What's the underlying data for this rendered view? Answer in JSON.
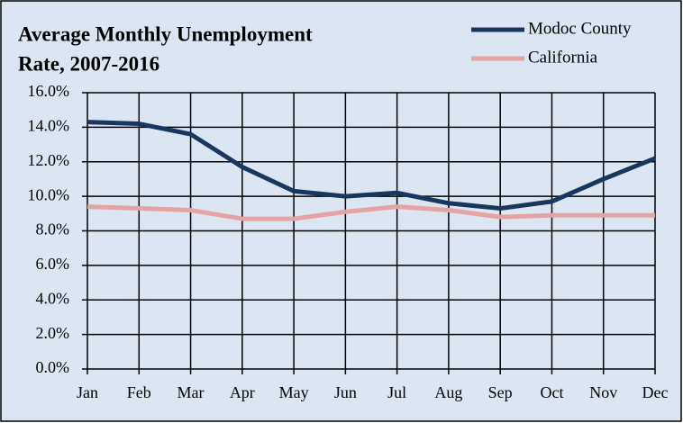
{
  "chart_data": {
    "type": "line",
    "title": [
      "Average Monthly Unemployment",
      "Rate,  2007-2016"
    ],
    "categories": [
      "Jan",
      "Feb",
      "Mar",
      "Apr",
      "May",
      "Jun",
      "Jul",
      "Aug",
      "Sep",
      "Oct",
      "Nov",
      "Dec"
    ],
    "series": [
      {
        "name": "Modoc County",
        "color": "#17375e",
        "values": [
          14.3,
          14.2,
          13.6,
          11.7,
          10.3,
          10.0,
          10.2,
          9.6,
          9.3,
          9.7,
          11.0,
          12.2
        ]
      },
      {
        "name": "California",
        "color": "#e6a3a3",
        "values": [
          9.4,
          9.3,
          9.2,
          8.7,
          8.7,
          9.1,
          9.4,
          9.2,
          8.8,
          8.9,
          8.9,
          8.9
        ]
      }
    ],
    "ylim": [
      0,
      16
    ],
    "yticks": [
      {
        "value": 0,
        "label": "0.0%"
      },
      {
        "value": 2,
        "label": "2.0%"
      },
      {
        "value": 4,
        "label": "4.0%"
      },
      {
        "value": 6,
        "label": "6.0%"
      },
      {
        "value": 8,
        "label": "8.0%"
      },
      {
        "value": 10,
        "label": "10.0%"
      },
      {
        "value": 12,
        "label": "12.0%"
      },
      {
        "value": 14,
        "label": "14.0%"
      },
      {
        "value": 16,
        "label": "16.0%"
      }
    ],
    "grid": true,
    "legend": "top-right"
  }
}
